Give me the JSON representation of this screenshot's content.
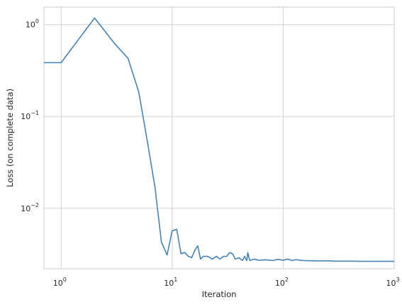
{
  "chart_data": {
    "type": "line",
    "xlabel": "Iteration",
    "ylabel": "Loss (on complete data)",
    "x_scale": "log",
    "y_scale": "log",
    "xlim": [
      0.7,
      1000
    ],
    "ylim": [
      0.0022,
      1.55
    ],
    "grid": true,
    "x_ticks": [
      {
        "value": 1,
        "base": "10",
        "exp": "0"
      },
      {
        "value": 10,
        "base": "10",
        "exp": "1"
      },
      {
        "value": 100,
        "base": "10",
        "exp": "2"
      },
      {
        "value": 1000,
        "base": "10",
        "exp": "3"
      }
    ],
    "y_ticks": [
      {
        "value": 1,
        "base": "10",
        "exp": "0"
      },
      {
        "value": 0.1,
        "base": "10",
        "exp": "−1"
      },
      {
        "value": 0.01,
        "base": "10",
        "exp": "−2"
      }
    ],
    "series": [
      {
        "color": "#4682b4",
        "points": [
          [
            0.7,
            0.385
          ],
          [
            1,
            0.385
          ],
          [
            2,
            1.18
          ],
          [
            3,
            0.63
          ],
          [
            4,
            0.43
          ],
          [
            5,
            0.185
          ],
          [
            6,
            0.052
          ],
          [
            7,
            0.017
          ],
          [
            8,
            0.0043
          ],
          [
            9,
            0.0031
          ],
          [
            10,
            0.0057
          ],
          [
            11,
            0.0059
          ],
          [
            12,
            0.0032
          ],
          [
            13,
            0.0033
          ],
          [
            14,
            0.003
          ],
          [
            15,
            0.0029
          ],
          [
            16,
            0.0035
          ],
          [
            17,
            0.0039
          ],
          [
            18,
            0.0028
          ],
          [
            19,
            0.003
          ],
          [
            21,
            0.003
          ],
          [
            23,
            0.0028
          ],
          [
            25,
            0.003
          ],
          [
            27,
            0.0028
          ],
          [
            29,
            0.003
          ],
          [
            31,
            0.003
          ],
          [
            33,
            0.0033
          ],
          [
            35,
            0.0032
          ],
          [
            37,
            0.0028
          ],
          [
            40,
            0.0029
          ],
          [
            43,
            0.0027
          ],
          [
            45,
            0.003
          ],
          [
            47,
            0.0027
          ],
          [
            48,
            0.0033
          ],
          [
            50,
            0.0027
          ],
          [
            55,
            0.0028
          ],
          [
            60,
            0.00272
          ],
          [
            70,
            0.00275
          ],
          [
            80,
            0.0027
          ],
          [
            90,
            0.00278
          ],
          [
            100,
            0.00272
          ],
          [
            110,
            0.0028
          ],
          [
            120,
            0.0027
          ],
          [
            130,
            0.00276
          ],
          [
            150,
            0.0027
          ],
          [
            200,
            0.00268
          ],
          [
            250,
            0.00268
          ],
          [
            300,
            0.00266
          ],
          [
            400,
            0.00266
          ],
          [
            500,
            0.00265
          ],
          [
            700,
            0.00265
          ],
          [
            1000,
            0.00265
          ]
        ]
      }
    ]
  }
}
